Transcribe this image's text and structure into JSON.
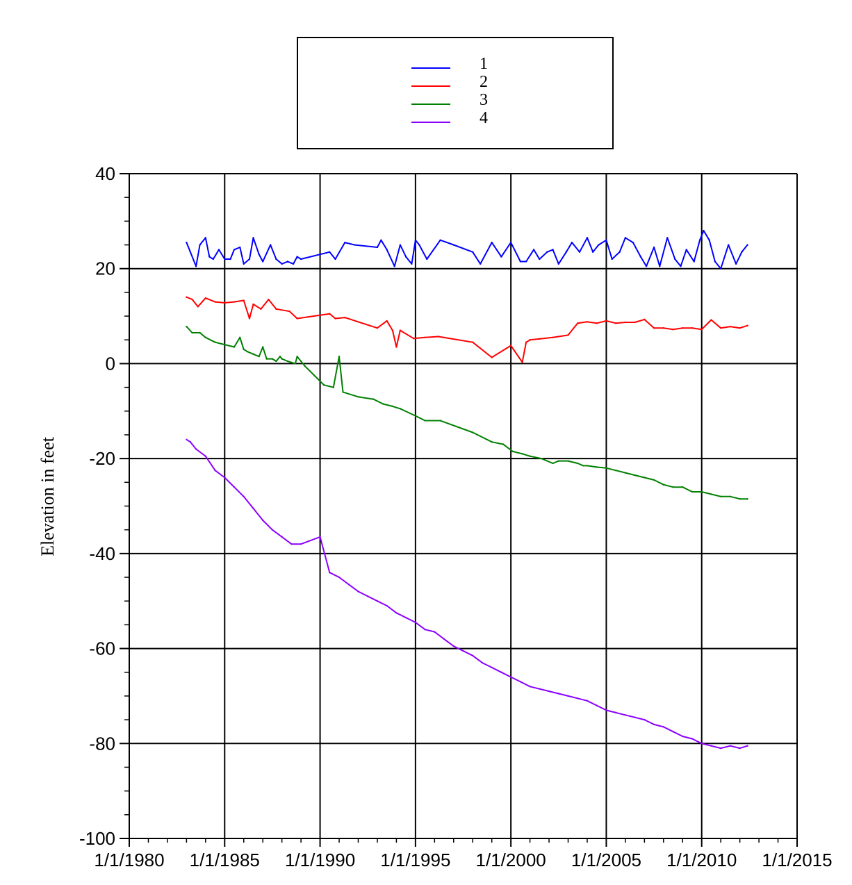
{
  "chart_data": {
    "type": "line",
    "title": "",
    "xlabel": "",
    "ylabel": "Elevation in feet",
    "xlim": [
      "1/1/1980",
      "1/1/2015"
    ],
    "ylim": [
      -100,
      40
    ],
    "grid": true,
    "legend_placement": "top-center",
    "x_ticks": [
      "1/1/1980",
      "1/1/1985",
      "1/1/1990",
      "1/1/1995",
      "1/1/2000",
      "1/1/2005",
      "1/1/2010",
      "1/1/2015"
    ],
    "y_ticks": [
      "-100",
      "-80",
      "-60",
      "-40",
      "-20",
      "0",
      "20",
      "40"
    ],
    "series": [
      {
        "name": "1",
        "color": "#0000ff",
        "x": [
          1983.0,
          1983.2,
          1983.5,
          1983.7,
          1984.0,
          1984.2,
          1984.4,
          1984.7,
          1985.0,
          1985.3,
          1985.5,
          1985.8,
          1986.0,
          1986.3,
          1986.5,
          1986.8,
          1987.0,
          1987.4,
          1987.7,
          1988.0,
          1988.3,
          1988.6,
          1988.8,
          1989.0,
          1990.5,
          1990.8,
          1991.3,
          1991.8,
          1993.0,
          1993.2,
          1993.5,
          1993.9,
          1994.2,
          1994.5,
          1994.8,
          1995.0,
          1995.2,
          1995.6,
          1996.3,
          1997.0,
          1998.0,
          1998.4,
          1999.0,
          1999.5,
          2000.0,
          2000.5,
          2000.8,
          2001.2,
          2001.5,
          2001.9,
          2002.2,
          2002.5,
          2002.9,
          2003.2,
          2003.6,
          2004.0,
          2004.3,
          2004.6,
          2005.0,
          2005.3,
          2005.7,
          2006.0,
          2006.4,
          2006.8,
          2007.1,
          2007.5,
          2007.8,
          2008.2,
          2008.6,
          2008.9,
          2009.2,
          2009.6,
          2009.9,
          2010.1,
          2010.4,
          2010.7,
          2011.0,
          2011.4,
          2011.8,
          2012.1,
          2012.4
        ],
        "y": [
          25.5,
          23.5,
          20.5,
          25,
          26.5,
          22.5,
          22,
          24,
          22,
          22,
          24,
          24.5,
          21,
          22,
          26.5,
          23,
          21.5,
          25,
          22,
          21,
          21.5,
          21,
          22.5,
          22,
          23.5,
          22,
          25.5,
          25,
          24.5,
          26,
          24,
          20.5,
          25,
          22.5,
          21,
          26,
          25,
          22,
          26,
          25,
          23.5,
          21,
          25.5,
          22.5,
          25.5,
          21.5,
          21.5,
          24,
          22,
          23.5,
          24,
          21,
          23.5,
          25.5,
          23.5,
          26.5,
          23.5,
          25,
          26,
          22,
          23.5,
          26.5,
          25.5,
          22.5,
          20.5,
          24.5,
          20.5,
          26.5,
          22,
          20.5,
          24,
          21.5,
          26,
          28,
          26,
          21.5,
          20,
          25,
          21,
          23.5,
          25
        ]
      },
      {
        "name": "2",
        "color": "#ff0000",
        "x": [
          1983.0,
          1983.3,
          1983.6,
          1984.0,
          1984.5,
          1985.0,
          1985.5,
          1986.0,
          1986.3,
          1986.5,
          1986.9,
          1987.3,
          1987.7,
          1988.4,
          1988.8,
          1990.5,
          1990.8,
          1991.3,
          1993.0,
          1993.5,
          1993.8,
          1994.0,
          1994.2,
          1994.9,
          1995.5,
          1996.2,
          1998.0,
          1999.0,
          2000.0,
          2000.6,
          2000.8,
          2001.0,
          2001.5,
          2002.2,
          2003.0,
          2003.5,
          2004.0,
          2004.5,
          2005.0,
          2005.5,
          2006.0,
          2006.5,
          2007.0,
          2007.5,
          2008.0,
          2008.5,
          2009.0,
          2009.5,
          2010.0,
          2010.5,
          2011.0,
          2011.5,
          2012.0,
          2012.4
        ],
        "y": [
          14,
          13.5,
          12,
          13.8,
          13,
          12.8,
          13,
          13.3,
          9.5,
          12.5,
          11.5,
          13.5,
          11.5,
          11,
          9.5,
          10.5,
          9.5,
          9.7,
          7.5,
          9,
          7,
          3.5,
          7,
          5.3,
          5.5,
          5.7,
          4.5,
          1.3,
          3.8,
          0.3,
          4.5,
          5,
          5.2,
          5.5,
          6,
          8.5,
          8.8,
          8.5,
          9,
          8.5,
          8.7,
          8.7,
          9.3,
          7.5,
          7.5,
          7.2,
          7.5,
          7.5,
          7.2,
          9.2,
          7.5,
          7.8,
          7.5,
          8
        ]
      },
      {
        "name": "3",
        "color": "#008000",
        "x": [
          1983.0,
          1983.3,
          1983.7,
          1984.0,
          1984.5,
          1985.0,
          1985.5,
          1985.8,
          1986.0,
          1986.2,
          1986.5,
          1986.8,
          1987.0,
          1987.2,
          1987.5,
          1987.7,
          1987.9,
          1988.0,
          1988.3,
          1988.7,
          1988.8,
          1989.2,
          1989.7,
          1990.2,
          1990.7,
          1991.0,
          1991.2,
          1992.0,
          1992.8,
          1993.3,
          1993.8,
          1994.2,
          1995.0,
          1995.5,
          1996.3,
          1998.0,
          1999.0,
          1999.6,
          2000.1,
          2000.6,
          2001.0,
          2001.6,
          2002.2,
          2002.5,
          2003.0,
          2003.5,
          2003.8,
          2004.0,
          2004.5,
          2005.0,
          2005.5,
          2006.0,
          2006.5,
          2007.0,
          2007.5,
          2008.0,
          2008.5,
          2009.0,
          2009.5,
          2010.0,
          2010.5,
          2011.0,
          2011.5,
          2012.0,
          2012.4
        ],
        "y": [
          7.8,
          6.5,
          6.5,
          5.5,
          4.5,
          4,
          3.5,
          5.5,
          3,
          2.5,
          2,
          1.5,
          3.5,
          1,
          1,
          0.5,
          1.5,
          1,
          0.5,
          0,
          1.5,
          -0.5,
          -2.5,
          -4.5,
          -5,
          1.5,
          -6,
          -7,
          -7.5,
          -8.5,
          -9,
          -9.5,
          -11,
          -12,
          -12,
          -14.5,
          -16.5,
          -17,
          -18.5,
          -19,
          -19.5,
          -20,
          -21,
          -20.5,
          -20.5,
          -21,
          -21.5,
          -21.5,
          -21.8,
          -22,
          -22.5,
          -23,
          -23.5,
          -24,
          -24.5,
          -25.5,
          -26,
          -26,
          -27,
          -27,
          -27.5,
          -28,
          -28,
          -28.5,
          -28.5
        ]
      },
      {
        "name": "4",
        "color": "#8b00ff",
        "x": [
          1983.0,
          1983.2,
          1983.5,
          1984.0,
          1984.5,
          1985.0,
          1985.5,
          1986.0,
          1986.5,
          1987.0,
          1987.5,
          1988.0,
          1988.5,
          1989.0,
          1990.0,
          1990.5,
          1991.0,
          1991.5,
          1992.0,
          1992.5,
          1993.0,
          1993.5,
          1994.0,
          1994.5,
          1995.0,
          1995.5,
          1996.0,
          1996.5,
          1997.0,
          1997.5,
          1998.0,
          1998.5,
          1999.0,
          1999.5,
          2000.0,
          2000.5,
          2001.0,
          2001.5,
          2002.0,
          2002.5,
          2003.0,
          2003.5,
          2004.0,
          2004.5,
          2005.0,
          2005.5,
          2006.0,
          2006.5,
          2007.0,
          2007.5,
          2008.0,
          2008.5,
          2009.0,
          2009.5,
          2010.0,
          2010.5,
          2011.0,
          2011.5,
          2012.0,
          2012.4
        ],
        "y": [
          -16,
          -16.5,
          -18,
          -19.5,
          -22.5,
          -24,
          -26,
          -28,
          -30.5,
          -33,
          -35,
          -36.5,
          -38,
          -38,
          -36.5,
          -44,
          -45,
          -46.5,
          -48,
          -49,
          -50,
          -51,
          -52.5,
          -53.5,
          -54.5,
          -56,
          -56.5,
          -58,
          -59.5,
          -60.5,
          -61.5,
          -63,
          -64,
          -65,
          -66,
          -67,
          -68,
          -68.5,
          -69,
          -69.5,
          -70,
          -70.5,
          -71,
          -72,
          -73,
          -73.5,
          -74,
          -74.5,
          -75,
          -76,
          -76.5,
          -77.5,
          -78.5,
          -79,
          -80,
          -80.5,
          -81,
          -80.5,
          -81,
          -80.5
        ]
      }
    ]
  }
}
